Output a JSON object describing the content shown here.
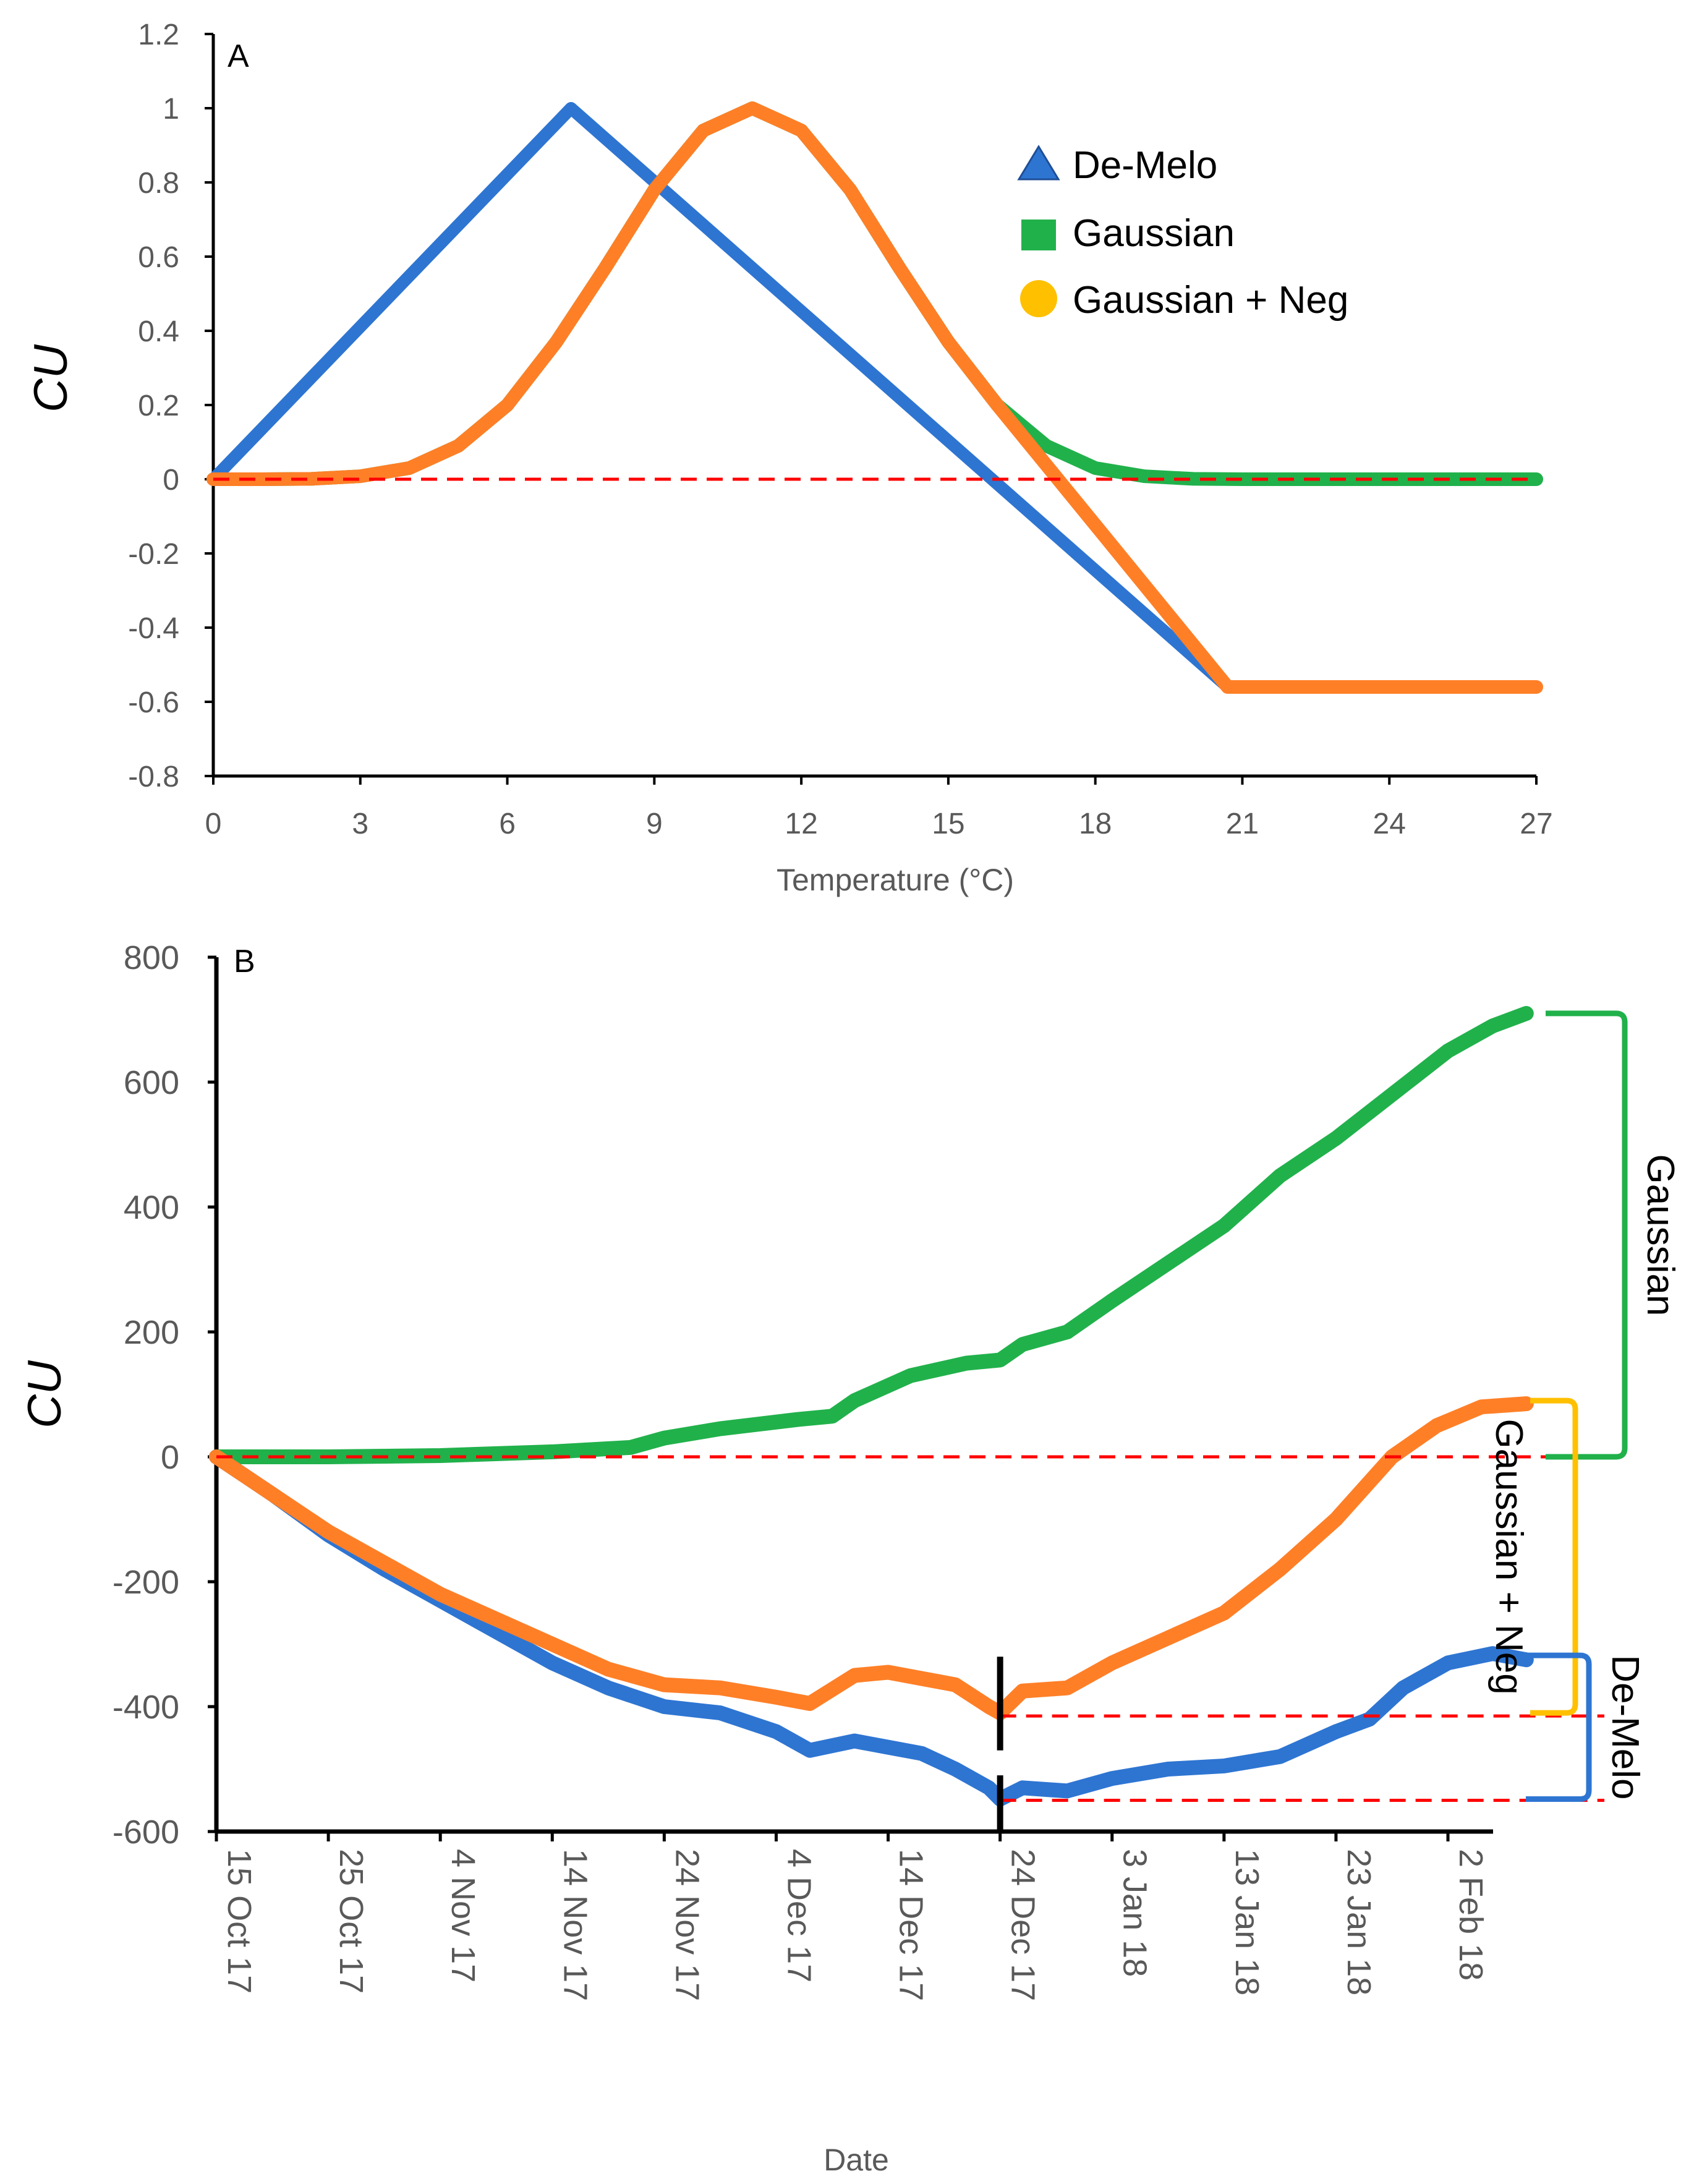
{
  "chart_data": [
    {
      "panel": "A",
      "type": "line",
      "xlabel": "Temperature (°C)",
      "ylabel": "CU",
      "xlim": [
        0,
        27
      ],
      "ylim": [
        -0.8,
        1.2
      ],
      "xticks": [
        "0",
        "3",
        "6",
        "9",
        "12",
        "15",
        "18",
        "21",
        "24",
        "27"
      ],
      "yticks": [
        "1.2",
        "1",
        "0.8",
        "0.6",
        "0.4",
        "0.2",
        "0",
        "-0.2",
        "-0.4",
        "-0.6",
        "-0.8"
      ],
      "reference_line": {
        "y": 0,
        "color": "#ff0000",
        "style": "dashed"
      },
      "legend_position": "top-right",
      "series": [
        {
          "name": "De-Melo",
          "marker": "triangle",
          "color": "#2e75d2",
          "x": [
            0,
            7.3,
            20.7,
            27
          ],
          "y": [
            0,
            1,
            -0.56,
            -0.56
          ]
        },
        {
          "name": "Gaussian",
          "marker": "square",
          "color": "#21b14b",
          "x": [
            0,
            1,
            2,
            3,
            4,
            5,
            6,
            7,
            8,
            9,
            10,
            11,
            12,
            13,
            14,
            15,
            16,
            17,
            18,
            19,
            20,
            21,
            22,
            23,
            24,
            25,
            26,
            27
          ],
          "y": [
            0,
            0,
            0.001,
            0.008,
            0.03,
            0.09,
            0.2,
            0.37,
            0.57,
            0.78,
            0.94,
            1.0,
            0.94,
            0.78,
            0.57,
            0.37,
            0.2,
            0.09,
            0.03,
            0.008,
            0.001,
            0,
            0,
            0,
            0,
            0,
            0,
            0
          ]
        },
        {
          "name": "Gaussian + Neg",
          "marker": "circle",
          "color": "#ff7f27",
          "legend_color": "#ffc000",
          "x": [
            0,
            1,
            2,
            3,
            4,
            5,
            6,
            7,
            8,
            9,
            10,
            11,
            12,
            13,
            14,
            15,
            16,
            20.7,
            27
          ],
          "y": [
            0,
            0,
            0.001,
            0.008,
            0.03,
            0.09,
            0.2,
            0.37,
            0.57,
            0.78,
            0.94,
            1.0,
            0.94,
            0.78,
            0.57,
            0.37,
            0.2,
            -0.56,
            -0.56
          ]
        }
      ]
    },
    {
      "panel": "B",
      "type": "line",
      "xlabel": "Date",
      "ylabel": "CU",
      "x_units": "days since 15 Oct 17",
      "xlim": [
        0,
        119
      ],
      "ylim": [
        -600,
        800
      ],
      "x_tick_values": [
        0,
        10,
        20,
        30,
        40,
        50,
        60,
        70,
        80,
        90,
        100,
        110
      ],
      "xticks": [
        "15 Oct 17",
        "25 Oct 17",
        "4 Nov 17",
        "14 Nov 17",
        "24 Nov 17",
        "4 Dec 17",
        "14 Dec 17",
        "24 Dec 17",
        "3 Jan 18",
        "13 Jan 18",
        "23 Jan 18",
        "2 Feb 18"
      ],
      "yticks": [
        "800",
        "600",
        "400",
        "200",
        "0",
        "-200",
        "-400",
        "-600"
      ],
      "marker_day": 70,
      "reference_lines": [
        {
          "y": 0,
          "color": "#ff0000",
          "style": "dashed"
        },
        {
          "y": -415,
          "x_from": 70,
          "color": "#ff0000",
          "style": "dashed"
        },
        {
          "y": -550,
          "x_from": 70,
          "color": "#ff0000",
          "style": "dashed"
        }
      ],
      "brackets": [
        {
          "label": "Gaussian",
          "from": 0,
          "to": 710,
          "color": "#21b14b"
        },
        {
          "label": "Gaussian + Neg",
          "from": -410,
          "to": 90,
          "color": "#ffc000"
        },
        {
          "label": "De-Melo",
          "from": -548,
          "to": -318,
          "color": "#2e75d2"
        }
      ],
      "series": [
        {
          "name": "Gaussian",
          "color": "#21b14b",
          "x": [
            0,
            10,
            20,
            30,
            37,
            40,
            45,
            52,
            55,
            57,
            62,
            67,
            70,
            72,
            76,
            80,
            85,
            90,
            95,
            100,
            105,
            110,
            114,
            117
          ],
          "y": [
            0,
            0,
            2,
            8,
            15,
            30,
            45,
            60,
            65,
            90,
            130,
            150,
            155,
            180,
            200,
            250,
            310,
            370,
            450,
            510,
            580,
            650,
            690,
            710
          ]
        },
        {
          "name": "Gaussian + Neg",
          "color": "#ff7f27",
          "x": [
            0,
            5,
            10,
            15,
            20,
            25,
            30,
            35,
            40,
            45,
            50,
            53,
            57,
            60,
            63,
            66,
            69,
            70,
            72,
            76,
            80,
            85,
            90,
            95,
            100,
            105,
            109,
            113,
            117
          ],
          "y": [
            0,
            -60,
            -120,
            -170,
            -220,
            -260,
            -300,
            -340,
            -365,
            -370,
            -385,
            -395,
            -350,
            -345,
            -355,
            -365,
            -400,
            -410,
            -375,
            -370,
            -330,
            -290,
            -250,
            -180,
            -100,
            0,
            50,
            80,
            85
          ]
        },
        {
          "name": "De-Melo",
          "color": "#2e75d2",
          "x": [
            0,
            5,
            10,
            15,
            20,
            25,
            30,
            35,
            40,
            45,
            50,
            53,
            57,
            60,
            63,
            66,
            69,
            70,
            72,
            76,
            80,
            85,
            90,
            95,
            100,
            103,
            106,
            110,
            114,
            117
          ],
          "y": [
            0,
            -60,
            -125,
            -180,
            -230,
            -280,
            -330,
            -370,
            -400,
            -410,
            -440,
            -470,
            -455,
            -465,
            -475,
            -500,
            -530,
            -548,
            -530,
            -535,
            -515,
            -500,
            -495,
            -480,
            -440,
            -420,
            -370,
            -330,
            -315,
            -325
          ]
        }
      ]
    }
  ],
  "labels": {
    "panel_a": "A",
    "panel_b": "B",
    "axis_a_x": "Temperature (°C)",
    "axis_a_y": "CU",
    "axis_b_x": "Date",
    "axis_b_y": "CU",
    "legend_de_melo": "De-Melo",
    "legend_gaussian": "Gaussian",
    "legend_gaussian_neg": "Gaussian + Neg",
    "bracket_gaussian": "Gaussian",
    "bracket_gaussian_neg": "Gaussian + Neg",
    "bracket_de_melo": "De-Melo"
  },
  "colors": {
    "de_melo": "#2e75d2",
    "gaussian": "#21b14b",
    "gaussian_neg_line": "#ff7f27",
    "gaussian_neg_legend": "#ffc000",
    "reference": "#ff0000"
  }
}
